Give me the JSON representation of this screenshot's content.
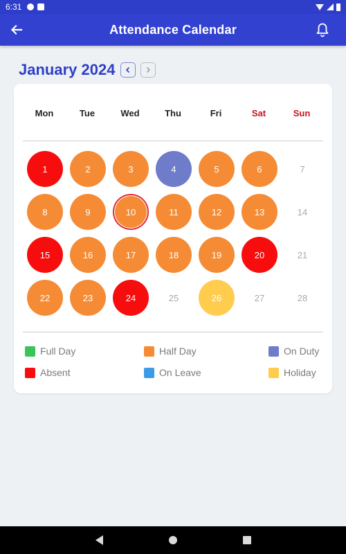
{
  "status_bar": {
    "time": "6:31"
  },
  "app_bar": {
    "title": "Attendance Calendar",
    "back_icon": "back-arrow-icon",
    "bell_icon": "bell-icon"
  },
  "month": {
    "label": "January 2024",
    "prev_icon": "chevron-left-icon",
    "next_icon": "chevron-right-icon"
  },
  "weekdays": [
    "Mon",
    "Tue",
    "Wed",
    "Thu",
    "Fri",
    "Sat",
    "Sun"
  ],
  "status_colors": {
    "full": "#3cc35a",
    "half": "#f58c35",
    "duty": "#6e7cc9",
    "absent": "#f70d0d",
    "leave": "#3c9be6",
    "holiday": "#ffcc4d"
  },
  "days": [
    {
      "day": "1",
      "status": "absent"
    },
    {
      "day": "2",
      "status": "half"
    },
    {
      "day": "3",
      "status": "half"
    },
    {
      "day": "4",
      "status": "duty"
    },
    {
      "day": "5",
      "status": "half"
    },
    {
      "day": "6",
      "status": "half"
    },
    {
      "day": "7",
      "status": "none"
    },
    {
      "day": "8",
      "status": "half"
    },
    {
      "day": "9",
      "status": "half"
    },
    {
      "day": "10",
      "status": "half",
      "today": true
    },
    {
      "day": "11",
      "status": "half"
    },
    {
      "day": "12",
      "status": "half"
    },
    {
      "day": "13",
      "status": "half"
    },
    {
      "day": "14",
      "status": "none"
    },
    {
      "day": "15",
      "status": "absent"
    },
    {
      "day": "16",
      "status": "half"
    },
    {
      "day": "17",
      "status": "half"
    },
    {
      "day": "18",
      "status": "half"
    },
    {
      "day": "19",
      "status": "half"
    },
    {
      "day": "20",
      "status": "absent"
    },
    {
      "day": "21",
      "status": "none"
    },
    {
      "day": "22",
      "status": "half"
    },
    {
      "day": "23",
      "status": "half"
    },
    {
      "day": "24",
      "status": "absent"
    },
    {
      "day": "25",
      "status": "none"
    },
    {
      "day": "26",
      "status": "holiday"
    },
    {
      "day": "27",
      "status": "none"
    },
    {
      "day": "28",
      "status": "none"
    }
  ],
  "legend": [
    {
      "label": "Full Day",
      "status": "full"
    },
    {
      "label": "Half Day",
      "status": "half"
    },
    {
      "label": "On Duty",
      "status": "duty"
    },
    {
      "label": "Absent",
      "status": "absent"
    },
    {
      "label": "On Leave",
      "status": "leave"
    },
    {
      "label": "Holiday",
      "status": "holiday"
    }
  ]
}
